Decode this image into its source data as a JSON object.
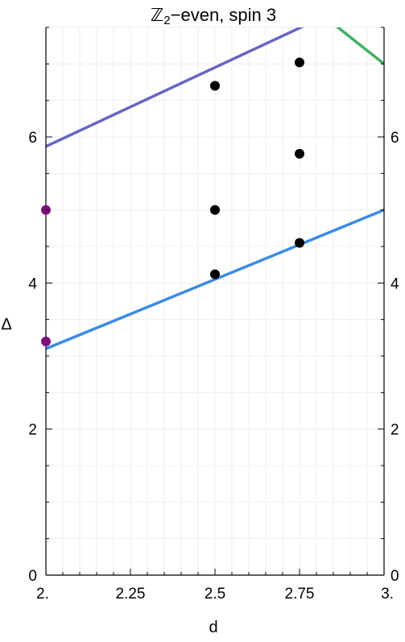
{
  "chart_data": {
    "type": "scatter",
    "title": "ℤ2−even, spin 3",
    "title_main": "ℤ",
    "title_sub": "2",
    "title_rest": "−even, spin 3",
    "xlabel": "d",
    "ylabel": "Δ",
    "xlim": [
      2.0,
      3.0
    ],
    "ylim": [
      0,
      7.5
    ],
    "x_ticks": [
      2.0,
      2.25,
      2.5,
      2.75,
      3.0
    ],
    "x_tick_labels": [
      "2.",
      "2.25",
      "2.5",
      "2.75",
      "3."
    ],
    "y_ticks": [
      0,
      2,
      4,
      6
    ],
    "y_tick_labels": [
      "0",
      "2",
      "4",
      "6"
    ],
    "grid": true,
    "series": [
      {
        "kind": "line",
        "color": "#3b8ae6",
        "points": [
          {
            "x": 2.0,
            "y": 3.1
          },
          {
            "x": 3.0,
            "y": 5.0
          }
        ]
      },
      {
        "kind": "line",
        "color": "#6666c4",
        "points": [
          {
            "x": 2.0,
            "y": 5.87
          },
          {
            "x": 2.8,
            "y": 7.6
          }
        ]
      },
      {
        "kind": "line",
        "color": "#3fb166",
        "points": [
          {
            "x": 2.85,
            "y": 7.55
          },
          {
            "x": 3.0,
            "y": 7.0
          }
        ]
      },
      {
        "kind": "points",
        "color": "#000000",
        "points": [
          {
            "x": 2.5,
            "y": 4.12
          },
          {
            "x": 2.5,
            "y": 5.0
          },
          {
            "x": 2.5,
            "y": 6.7
          },
          {
            "x": 2.75,
            "y": 4.55
          },
          {
            "x": 2.75,
            "y": 5.77
          },
          {
            "x": 2.75,
            "y": 7.02
          }
        ]
      },
      {
        "kind": "points",
        "color": "#7b0f7b",
        "points": [
          {
            "x": 2.0,
            "y": 3.2
          },
          {
            "x": 2.0,
            "y": 5.0
          }
        ]
      }
    ]
  }
}
